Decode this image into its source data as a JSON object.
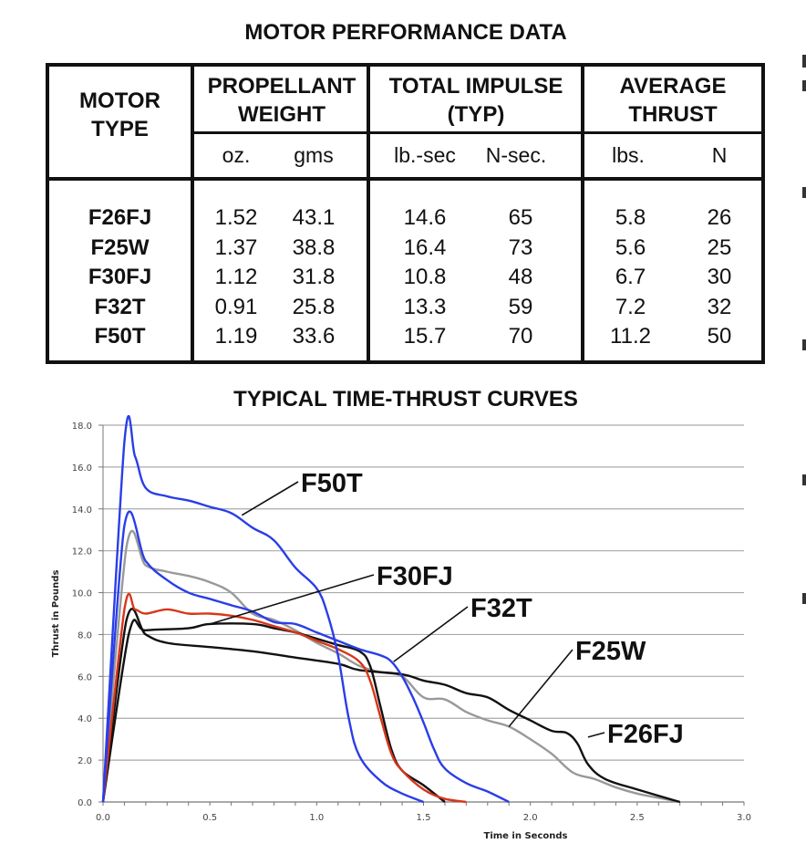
{
  "table": {
    "title": "MOTOR PERFORMANCE DATA",
    "headers": {
      "motor_type": "MOTOR TYPE",
      "propellant_weight": "PROPELLANT WEIGHT",
      "total_impulse": "TOTAL IMPULSE (TYP)",
      "average_thrust": "AVERAGE THRUST"
    },
    "units": [
      "oz.",
      "gms",
      "lb.-sec",
      "N-sec.",
      "lbs.",
      "N"
    ],
    "rows": [
      {
        "motor": "F26FJ",
        "oz": "1.52",
        "gms": "43.1",
        "lbsec": "14.6",
        "nsec": "65",
        "lbs": "5.8",
        "n": "26"
      },
      {
        "motor": "F25W",
        "oz": "1.37",
        "gms": "38.8",
        "lbsec": "16.4",
        "nsec": "73",
        "lbs": "5.6",
        "n": "25"
      },
      {
        "motor": "F30FJ",
        "oz": "1.12",
        "gms": "31.8",
        "lbsec": "10.8",
        "nsec": "48",
        "lbs": "6.7",
        "n": "30"
      },
      {
        "motor": "F32T",
        "oz": "0.91",
        "gms": "25.8",
        "lbsec": "13.3",
        "nsec": "59",
        "lbs": "7.2",
        "n": "32"
      },
      {
        "motor": "F50T",
        "oz": "1.19",
        "gms": "33.6",
        "lbsec": "15.7",
        "nsec": "70",
        "lbs": "11.2",
        "n": "50"
      }
    ]
  },
  "chart_data": {
    "type": "line",
    "title": "TYPICAL TIME-THRUST CURVES",
    "xlabel": "Time in Seconds",
    "ylabel": "Thrust in Pounds",
    "xlim": [
      0,
      3.0
    ],
    "ylim": [
      0,
      18.0
    ],
    "xticks": [
      "0.0",
      "0.5",
      "1.0",
      "1.5",
      "2.0",
      "2.5",
      "3.0"
    ],
    "yticks": [
      "0.0",
      "2.0",
      "4.0",
      "6.0",
      "8.0",
      "10.0",
      "12.0",
      "14.0",
      "16.0",
      "18.0"
    ],
    "grid": "horizontal",
    "series": [
      {
        "name": "F50T",
        "color": "#2a3ee8",
        "label_anchor": [
          0.65,
          13.7
        ],
        "points": [
          [
            0,
            0
          ],
          [
            0.1,
            17.2
          ],
          [
            0.15,
            16.5
          ],
          [
            0.2,
            15.0
          ],
          [
            0.3,
            14.6
          ],
          [
            0.4,
            14.4
          ],
          [
            0.5,
            14.1
          ],
          [
            0.6,
            13.8
          ],
          [
            0.7,
            13.1
          ],
          [
            0.8,
            12.5
          ],
          [
            0.9,
            11.2
          ],
          [
            1.0,
            10.2
          ],
          [
            1.05,
            9.0
          ],
          [
            1.1,
            7.0
          ],
          [
            1.15,
            4.0
          ],
          [
            1.2,
            2.2
          ],
          [
            1.3,
            1.0
          ],
          [
            1.4,
            0.4
          ],
          [
            1.5,
            0
          ]
        ]
      },
      {
        "name": "F32T",
        "color": "#2a3ee8",
        "label_anchor": [
          1.36,
          6.7
        ],
        "points": [
          [
            0,
            0
          ],
          [
            0.1,
            13.2
          ],
          [
            0.2,
            11.5
          ],
          [
            0.3,
            10.6
          ],
          [
            0.4,
            10.0
          ],
          [
            0.5,
            9.7
          ],
          [
            0.6,
            9.4
          ],
          [
            0.7,
            9.1
          ],
          [
            0.8,
            8.6
          ],
          [
            0.9,
            8.5
          ],
          [
            1.0,
            8.1
          ],
          [
            1.1,
            7.7
          ],
          [
            1.2,
            7.3
          ],
          [
            1.3,
            7.0
          ],
          [
            1.35,
            6.7
          ],
          [
            1.4,
            6.0
          ],
          [
            1.45,
            5.0
          ],
          [
            1.5,
            3.8
          ],
          [
            1.55,
            2.5
          ],
          [
            1.6,
            1.6
          ],
          [
            1.7,
            0.9
          ],
          [
            1.8,
            0.5
          ],
          [
            1.9,
            0
          ]
        ]
      },
      {
        "name": "F25W",
        "color": "#999999",
        "label_anchor": [
          1.9,
          3.6
        ],
        "points": [
          [
            0,
            0
          ],
          [
            0.11,
            12.2
          ],
          [
            0.2,
            11.3
          ],
          [
            0.3,
            11.0
          ],
          [
            0.4,
            10.8
          ],
          [
            0.5,
            10.5
          ],
          [
            0.6,
            10.0
          ],
          [
            0.7,
            9.0
          ],
          [
            0.8,
            8.7
          ],
          [
            0.9,
            8.2
          ],
          [
            1.0,
            7.6
          ],
          [
            1.1,
            7.1
          ],
          [
            1.2,
            6.5
          ],
          [
            1.3,
            6.2
          ],
          [
            1.4,
            6.0
          ],
          [
            1.5,
            5.0
          ],
          [
            1.6,
            4.9
          ],
          [
            1.7,
            4.3
          ],
          [
            1.8,
            3.9
          ],
          [
            1.9,
            3.6
          ],
          [
            2.0,
            3.0
          ],
          [
            2.1,
            2.3
          ],
          [
            2.2,
            1.4
          ],
          [
            2.3,
            1.1
          ],
          [
            2.4,
            0.7
          ],
          [
            2.5,
            0.4
          ],
          [
            2.6,
            0.2
          ],
          [
            2.7,
            0
          ]
        ]
      },
      {
        "name": "F26FJ",
        "color": "#111111",
        "label_anchor": [
          2.27,
          3.1
        ],
        "points": [
          [
            0,
            0
          ],
          [
            0.11,
            8.7
          ],
          [
            0.2,
            8.0
          ],
          [
            0.3,
            7.6
          ],
          [
            0.5,
            7.4
          ],
          [
            0.7,
            7.2
          ],
          [
            0.9,
            6.9
          ],
          [
            1.1,
            6.6
          ],
          [
            1.2,
            6.3
          ],
          [
            1.4,
            6.1
          ],
          [
            1.5,
            5.8
          ],
          [
            1.6,
            5.6
          ],
          [
            1.7,
            5.2
          ],
          [
            1.8,
            5.0
          ],
          [
            1.9,
            4.4
          ],
          [
            2.0,
            3.9
          ],
          [
            2.1,
            3.4
          ],
          [
            2.17,
            3.3
          ],
          [
            2.22,
            2.8
          ],
          [
            2.27,
            1.8
          ],
          [
            2.35,
            1.1
          ],
          [
            2.5,
            0.6
          ],
          [
            2.7,
            0
          ]
        ]
      },
      {
        "name": "F30FJ",
        "color": "#111111",
        "label_anchor": [
          0.5,
          8.5
        ],
        "points": [
          [
            0,
            0
          ],
          [
            0.12,
            8.0
          ],
          [
            0.2,
            8.2
          ],
          [
            0.4,
            8.3
          ],
          [
            0.5,
            8.5
          ],
          [
            0.7,
            8.5
          ],
          [
            0.8,
            8.3
          ],
          [
            0.9,
            8.1
          ],
          [
            1.0,
            7.8
          ],
          [
            1.1,
            7.5
          ],
          [
            1.2,
            7.2
          ],
          [
            1.25,
            6.5
          ],
          [
            1.3,
            4.5
          ],
          [
            1.35,
            2.5
          ],
          [
            1.4,
            1.5
          ],
          [
            1.5,
            0.8
          ],
          [
            1.6,
            0
          ]
        ]
      },
      {
        "color": "#d8361a",
        "points": [
          [
            0,
            0
          ],
          [
            0.1,
            9.2
          ],
          [
            0.15,
            9.2
          ],
          [
            0.2,
            9.0
          ],
          [
            0.3,
            9.2
          ],
          [
            0.4,
            9.0
          ],
          [
            0.5,
            9.0
          ],
          [
            0.6,
            8.9
          ],
          [
            0.7,
            8.7
          ],
          [
            0.8,
            8.4
          ],
          [
            0.9,
            8.1
          ],
          [
            1.0,
            7.7
          ],
          [
            1.1,
            7.3
          ],
          [
            1.2,
            6.7
          ],
          [
            1.25,
            5.8
          ],
          [
            1.3,
            4.0
          ],
          [
            1.35,
            2.3
          ],
          [
            1.4,
            1.5
          ],
          [
            1.5,
            0.6
          ],
          [
            1.6,
            0.15
          ],
          [
            1.7,
            0
          ]
        ]
      }
    ]
  }
}
